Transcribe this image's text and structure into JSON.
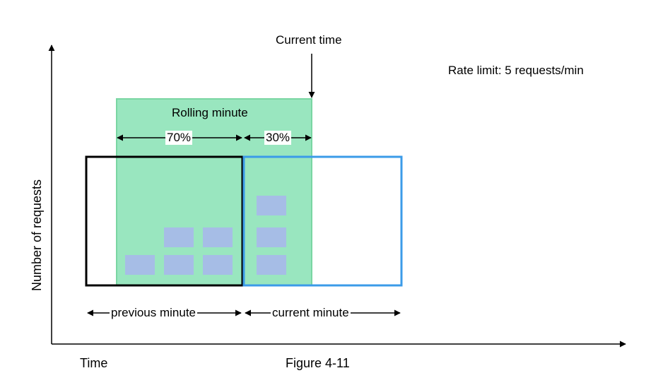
{
  "labels": {
    "current_time": "Current time",
    "rate_limit": "Rate limit: 5 requests/min",
    "rolling_minute": "Rolling minute",
    "pct_previous": "70%",
    "pct_current": "30%",
    "y_axis": "Number of requests",
    "x_axis": "Time",
    "previous_minute": "previous minute",
    "current_minute": "current minute",
    "figure": "Figure 4-11"
  },
  "colors": {
    "rolling_fill": "#99e6bf",
    "rolling_border": "#7ad6a3",
    "previous_border": "#000000",
    "current_border": "#3b9be8",
    "request_block": "#a6bde6"
  },
  "requests": {
    "previous_minute": 5,
    "current_minute": 3
  }
}
